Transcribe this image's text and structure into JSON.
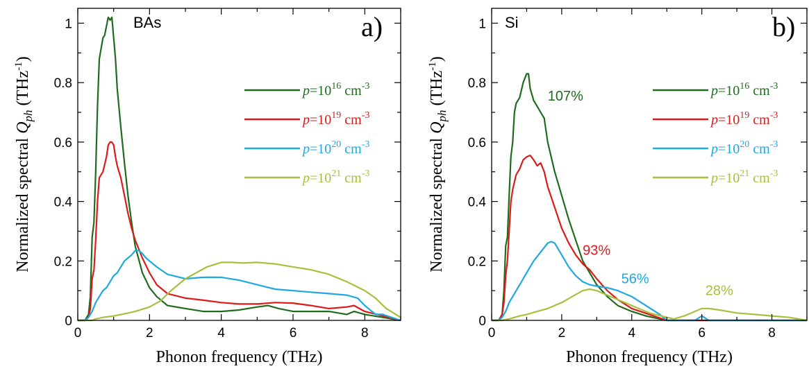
{
  "colors": {
    "dark_green": "#1e6b1e",
    "red": "#dd1a1a",
    "cyan": "#1ea8e0",
    "olive": "#a7bf3b"
  },
  "chart_data": [
    {
      "type": "line",
      "panel_label": "a)",
      "material": "BAs",
      "xlabel": "Phonon frequency (THz)",
      "ylabel": {
        "main": "Normalized spectral ",
        "sym": "Q",
        "sub": "ph",
        "unit_open": "  (THz",
        "unit_sup": "-1",
        "unit_close": ")"
      },
      "xlim": [
        0,
        9
      ],
      "ylim": [
        0,
        1.05
      ],
      "xticks": [
        0,
        2,
        4,
        6,
        8
      ],
      "yticks": [
        0,
        0.2,
        0.4,
        0.6,
        0.8,
        1
      ],
      "ytick_labels": [
        "0",
        "0.2",
        "0.4",
        "0.6",
        "0.8",
        "1"
      ],
      "legend_position": "right",
      "series": [
        {
          "color": "#1e6b1e",
          "legend": {
            "p": "p",
            "base": "=10",
            "exp": "16",
            "unit": " cm",
            "unit_exp": "-3"
          },
          "x": [
            0,
            0.2,
            0.3,
            0.35,
            0.4,
            0.45,
            0.5,
            0.55,
            0.6,
            0.7,
            0.75,
            0.8,
            0.85,
            0.9,
            0.95,
            1.0,
            1.05,
            1.1,
            1.2,
            1.3,
            1.4,
            1.5,
            1.6,
            1.8,
            2.0,
            2.2,
            2.5,
            3.0,
            3.5,
            4.0,
            4.5,
            5.0,
            5.3,
            5.6,
            6.0,
            6.5,
            7.0,
            7.5,
            7.7,
            8.0,
            8.5,
            9.0
          ],
          "y": [
            0,
            0.0,
            0.02,
            0.08,
            0.28,
            0.33,
            0.5,
            0.72,
            0.88,
            0.95,
            0.96,
            0.99,
            1.02,
            1.01,
            1.02,
            0.95,
            0.88,
            0.78,
            0.65,
            0.53,
            0.42,
            0.33,
            0.25,
            0.16,
            0.11,
            0.08,
            0.05,
            0.04,
            0.03,
            0.03,
            0.035,
            0.045,
            0.05,
            0.04,
            0.03,
            0.03,
            0.03,
            0.02,
            0.03,
            0.02,
            0.01,
            0.0
          ]
        },
        {
          "color": "#dd1a1a",
          "legend": {
            "p": "p",
            "base": "=10",
            "exp": "19",
            "unit": " cm",
            "unit_exp": "-3"
          },
          "x": [
            0,
            0.2,
            0.3,
            0.35,
            0.4,
            0.45,
            0.5,
            0.55,
            0.6,
            0.7,
            0.8,
            0.85,
            0.9,
            0.95,
            1.0,
            1.05,
            1.1,
            1.2,
            1.3,
            1.4,
            1.5,
            1.6,
            1.8,
            2.0,
            2.2,
            2.5,
            3.0,
            3.5,
            4.0,
            4.5,
            5.0,
            5.5,
            6.0,
            6.5,
            7.0,
            7.5,
            7.7,
            8.0,
            8.5,
            9.0
          ],
          "y": [
            0,
            0.0,
            0.01,
            0.04,
            0.14,
            0.17,
            0.27,
            0.4,
            0.48,
            0.5,
            0.55,
            0.59,
            0.6,
            0.6,
            0.59,
            0.55,
            0.52,
            0.48,
            0.42,
            0.36,
            0.31,
            0.27,
            0.21,
            0.16,
            0.12,
            0.09,
            0.075,
            0.068,
            0.06,
            0.055,
            0.055,
            0.06,
            0.058,
            0.05,
            0.04,
            0.045,
            0.05,
            0.03,
            0.015,
            0.0
          ]
        },
        {
          "color": "#1ea8e0",
          "legend": {
            "p": "p",
            "base": "=10",
            "exp": "20",
            "unit": " cm",
            "unit_exp": "-3"
          },
          "x": [
            0,
            0.2,
            0.3,
            0.4,
            0.5,
            0.6,
            0.7,
            0.8,
            0.9,
            1.0,
            1.1,
            1.2,
            1.3,
            1.4,
            1.5,
            1.6,
            1.7,
            1.8,
            1.9,
            2.0,
            2.2,
            2.5,
            3.0,
            3.5,
            4.0,
            4.5,
            5.0,
            5.5,
            6.0,
            6.5,
            7.0,
            7.5,
            7.8,
            8.0,
            8.3,
            8.5,
            9.0
          ],
          "y": [
            0,
            0.0,
            0.01,
            0.03,
            0.06,
            0.08,
            0.1,
            0.11,
            0.13,
            0.15,
            0.16,
            0.18,
            0.2,
            0.21,
            0.22,
            0.235,
            0.235,
            0.225,
            0.21,
            0.2,
            0.18,
            0.155,
            0.14,
            0.145,
            0.145,
            0.135,
            0.12,
            0.105,
            0.1,
            0.095,
            0.09,
            0.085,
            0.075,
            0.05,
            0.02,
            0.02,
            0.0
          ]
        },
        {
          "color": "#a7bf3b",
          "legend": {
            "p": "p",
            "base": "=10",
            "exp": "21",
            "unit": " cm",
            "unit_exp": "-3"
          },
          "x": [
            0,
            0.3,
            0.4,
            0.5,
            0.7,
            1.0,
            1.3,
            1.6,
            2.0,
            2.3,
            2.6,
            3.0,
            3.3,
            3.6,
            4.0,
            4.3,
            4.6,
            5.0,
            5.5,
            6.0,
            6.5,
            7.0,
            7.5,
            8.0,
            8.3,
            8.6,
            9.0
          ],
          "y": [
            0,
            0.0,
            0.0,
            0.005,
            0.01,
            0.015,
            0.022,
            0.03,
            0.045,
            0.065,
            0.1,
            0.14,
            0.16,
            0.18,
            0.195,
            0.195,
            0.193,
            0.195,
            0.19,
            0.18,
            0.17,
            0.155,
            0.13,
            0.1,
            0.075,
            0.04,
            0.01
          ]
        }
      ]
    },
    {
      "type": "line",
      "panel_label": "b)",
      "material": "Si",
      "xlabel": "Phonon frequency (THz)",
      "ylabel": {
        "main": "Normalized spectral ",
        "sym": "Q",
        "sub": "ph",
        "unit_open": "  (THz",
        "unit_sup": "-1",
        "unit_close": ")"
      },
      "xlim": [
        0,
        9
      ],
      "ylim": [
        0,
        1.05
      ],
      "xticks": [
        0,
        2,
        4,
        6,
        8
      ],
      "yticks": [
        0,
        0.2,
        0.4,
        0.6,
        0.8,
        1
      ],
      "ytick_labels": [
        "0",
        "0.2",
        "0.4",
        "0.6",
        "0.8",
        "1"
      ],
      "legend_position": "right",
      "series": [
        {
          "color": "#1e6b1e",
          "legend": {
            "p": "p",
            "base": "=10",
            "exp": "16",
            "unit": " cm",
            "unit_exp": "-3"
          },
          "annotation": {
            "text": "107%",
            "x": 1.6,
            "y": 0.74
          },
          "x": [
            0,
            0.2,
            0.3,
            0.35,
            0.4,
            0.45,
            0.5,
            0.55,
            0.6,
            0.65,
            0.7,
            0.8,
            0.9,
            1.0,
            1.05,
            1.1,
            1.2,
            1.3,
            1.4,
            1.5,
            1.6,
            1.8,
            2.0,
            2.2,
            2.4,
            2.6,
            2.8,
            3.0,
            3.3,
            3.6,
            4.0,
            4.4,
            4.8,
            5.0,
            5.5,
            6.0,
            6.5,
            7.0,
            9.0
          ],
          "y": [
            0,
            0.0,
            0.02,
            0.1,
            0.25,
            0.28,
            0.42,
            0.55,
            0.6,
            0.7,
            0.73,
            0.75,
            0.8,
            0.83,
            0.83,
            0.78,
            0.74,
            0.72,
            0.7,
            0.68,
            0.6,
            0.5,
            0.42,
            0.34,
            0.27,
            0.2,
            0.16,
            0.12,
            0.08,
            0.05,
            0.03,
            0.015,
            0.005,
            0.0,
            0.0,
            0.0,
            0.0,
            0.0,
            0.0
          ]
        },
        {
          "color": "#dd1a1a",
          "legend": {
            "p": "p",
            "base": "=10",
            "exp": "19",
            "unit": " cm",
            "unit_exp": "-3"
          },
          "annotation": {
            "text": "93%",
            "x": 2.6,
            "y": 0.22
          },
          "x": [
            0,
            0.2,
            0.3,
            0.35,
            0.4,
            0.45,
            0.5,
            0.55,
            0.6,
            0.7,
            0.8,
            0.9,
            1.0,
            1.1,
            1.2,
            1.3,
            1.4,
            1.5,
            1.6,
            1.8,
            2.0,
            2.2,
            2.4,
            2.6,
            2.8,
            3.0,
            3.3,
            3.6,
            4.0,
            4.5,
            5.0,
            9.0
          ],
          "y": [
            0,
            0.0,
            0.02,
            0.06,
            0.15,
            0.2,
            0.3,
            0.4,
            0.44,
            0.49,
            0.51,
            0.54,
            0.55,
            0.555,
            0.54,
            0.52,
            0.53,
            0.5,
            0.45,
            0.38,
            0.31,
            0.26,
            0.22,
            0.19,
            0.17,
            0.14,
            0.1,
            0.07,
            0.04,
            0.02,
            0.0,
            0.0
          ]
        },
        {
          "color": "#1ea8e0",
          "legend": {
            "p": "p",
            "base": "=10",
            "exp": "20",
            "unit": " cm",
            "unit_exp": "-3"
          },
          "annotation": {
            "text": "56%",
            "x": 3.7,
            "y": 0.125
          },
          "x": [
            0,
            0.2,
            0.3,
            0.4,
            0.5,
            0.6,
            0.8,
            1.0,
            1.2,
            1.4,
            1.6,
            1.7,
            1.8,
            1.9,
            2.0,
            2.2,
            2.4,
            2.6,
            2.8,
            3.0,
            3.3,
            3.6,
            4.0,
            4.4,
            4.8,
            5.0,
            5.5,
            5.8,
            6.0,
            6.2,
            6.5,
            9.0
          ],
          "y": [
            0,
            0.0,
            0.01,
            0.03,
            0.06,
            0.08,
            0.12,
            0.16,
            0.2,
            0.23,
            0.26,
            0.265,
            0.26,
            0.24,
            0.22,
            0.18,
            0.15,
            0.13,
            0.12,
            0.115,
            0.11,
            0.1,
            0.08,
            0.05,
            0.02,
            0.0,
            0.0,
            0.0,
            0.015,
            0.0,
            0.0,
            0.0
          ]
        },
        {
          "color": "#a7bf3b",
          "legend": {
            "p": "p",
            "base": "=10",
            "exp": "21",
            "unit": " cm",
            "unit_exp": "-3"
          },
          "annotation": {
            "text": "28%",
            "x": 6.1,
            "y": 0.085
          },
          "x": [
            0,
            0.3,
            0.5,
            0.8,
            1.0,
            1.3,
            1.6,
            2.0,
            2.3,
            2.6,
            2.8,
            3.0,
            3.3,
            3.6,
            4.0,
            4.5,
            5.0,
            5.2,
            5.5,
            5.8,
            6.0,
            6.2,
            6.5,
            7.0,
            7.5,
            8.0,
            8.5,
            9.0
          ],
          "y": [
            0,
            0.0,
            0.005,
            0.015,
            0.02,
            0.03,
            0.04,
            0.06,
            0.08,
            0.1,
            0.105,
            0.1,
            0.085,
            0.07,
            0.05,
            0.025,
            0.01,
            0.005,
            0.015,
            0.03,
            0.04,
            0.04,
            0.035,
            0.025,
            0.02,
            0.015,
            0.01,
            0.0
          ]
        }
      ]
    }
  ]
}
